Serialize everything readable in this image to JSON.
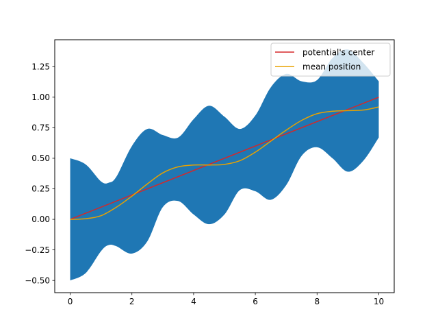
{
  "chart_data": {
    "type": "line",
    "title": "",
    "xlabel": "",
    "ylabel": "",
    "xlim": [
      -0.5,
      10.5
    ],
    "ylim": [
      -0.6,
      1.47
    ],
    "xticks": [
      0,
      2,
      4,
      6,
      8,
      10
    ],
    "xtick_labels": [
      "0",
      "2",
      "4",
      "6",
      "8",
      "10"
    ],
    "yticks": [
      -0.5,
      -0.25,
      0.0,
      0.25,
      0.5,
      0.75,
      1.0,
      1.25
    ],
    "ytick_labels": [
      "−0.50",
      "−0.25",
      "0.00",
      "0.25",
      "0.50",
      "0.75",
      "1.00",
      "1.25"
    ],
    "grid": false,
    "legend_position": "top-right",
    "band": {
      "color": "#1f77b4",
      "x": [
        0,
        0.5,
        1,
        1.25,
        1.5,
        2,
        2.5,
        3,
        3.5,
        4,
        4.5,
        5,
        5.5,
        6,
        6.5,
        7,
        7.5,
        8,
        8.5,
        9,
        9.5,
        10
      ],
      "upper": [
        0.5,
        0.45,
        0.31,
        0.3,
        0.35,
        0.6,
        0.74,
        0.69,
        0.67,
        0.82,
        0.93,
        0.84,
        0.74,
        0.85,
        1.08,
        1.19,
        1.13,
        1.14,
        1.32,
        1.39,
        1.28,
        1.13
      ],
      "lower": [
        -0.5,
        -0.44,
        -0.26,
        -0.21,
        -0.22,
        -0.28,
        -0.18,
        0.1,
        0.15,
        0.04,
        -0.04,
        0.04,
        0.24,
        0.23,
        0.16,
        0.28,
        0.52,
        0.59,
        0.5,
        0.39,
        0.48,
        0.67
      ]
    },
    "series": [
      {
        "name": "potential's center",
        "color": "#d62728",
        "x": [
          0,
          10
        ],
        "values": [
          0.0,
          1.0
        ]
      },
      {
        "name": "mean position",
        "color": "#e8a200",
        "x": [
          0,
          0.5,
          1,
          1.5,
          2,
          2.5,
          3,
          3.5,
          4,
          4.5,
          5,
          5.5,
          6,
          6.5,
          7,
          7.5,
          8,
          8.5,
          9,
          9.5,
          10
        ],
        "values": [
          0.0,
          0.005,
          0.03,
          0.1,
          0.19,
          0.29,
          0.38,
          0.43,
          0.445,
          0.445,
          0.45,
          0.48,
          0.55,
          0.64,
          0.73,
          0.81,
          0.865,
          0.885,
          0.89,
          0.895,
          0.92
        ]
      }
    ]
  }
}
